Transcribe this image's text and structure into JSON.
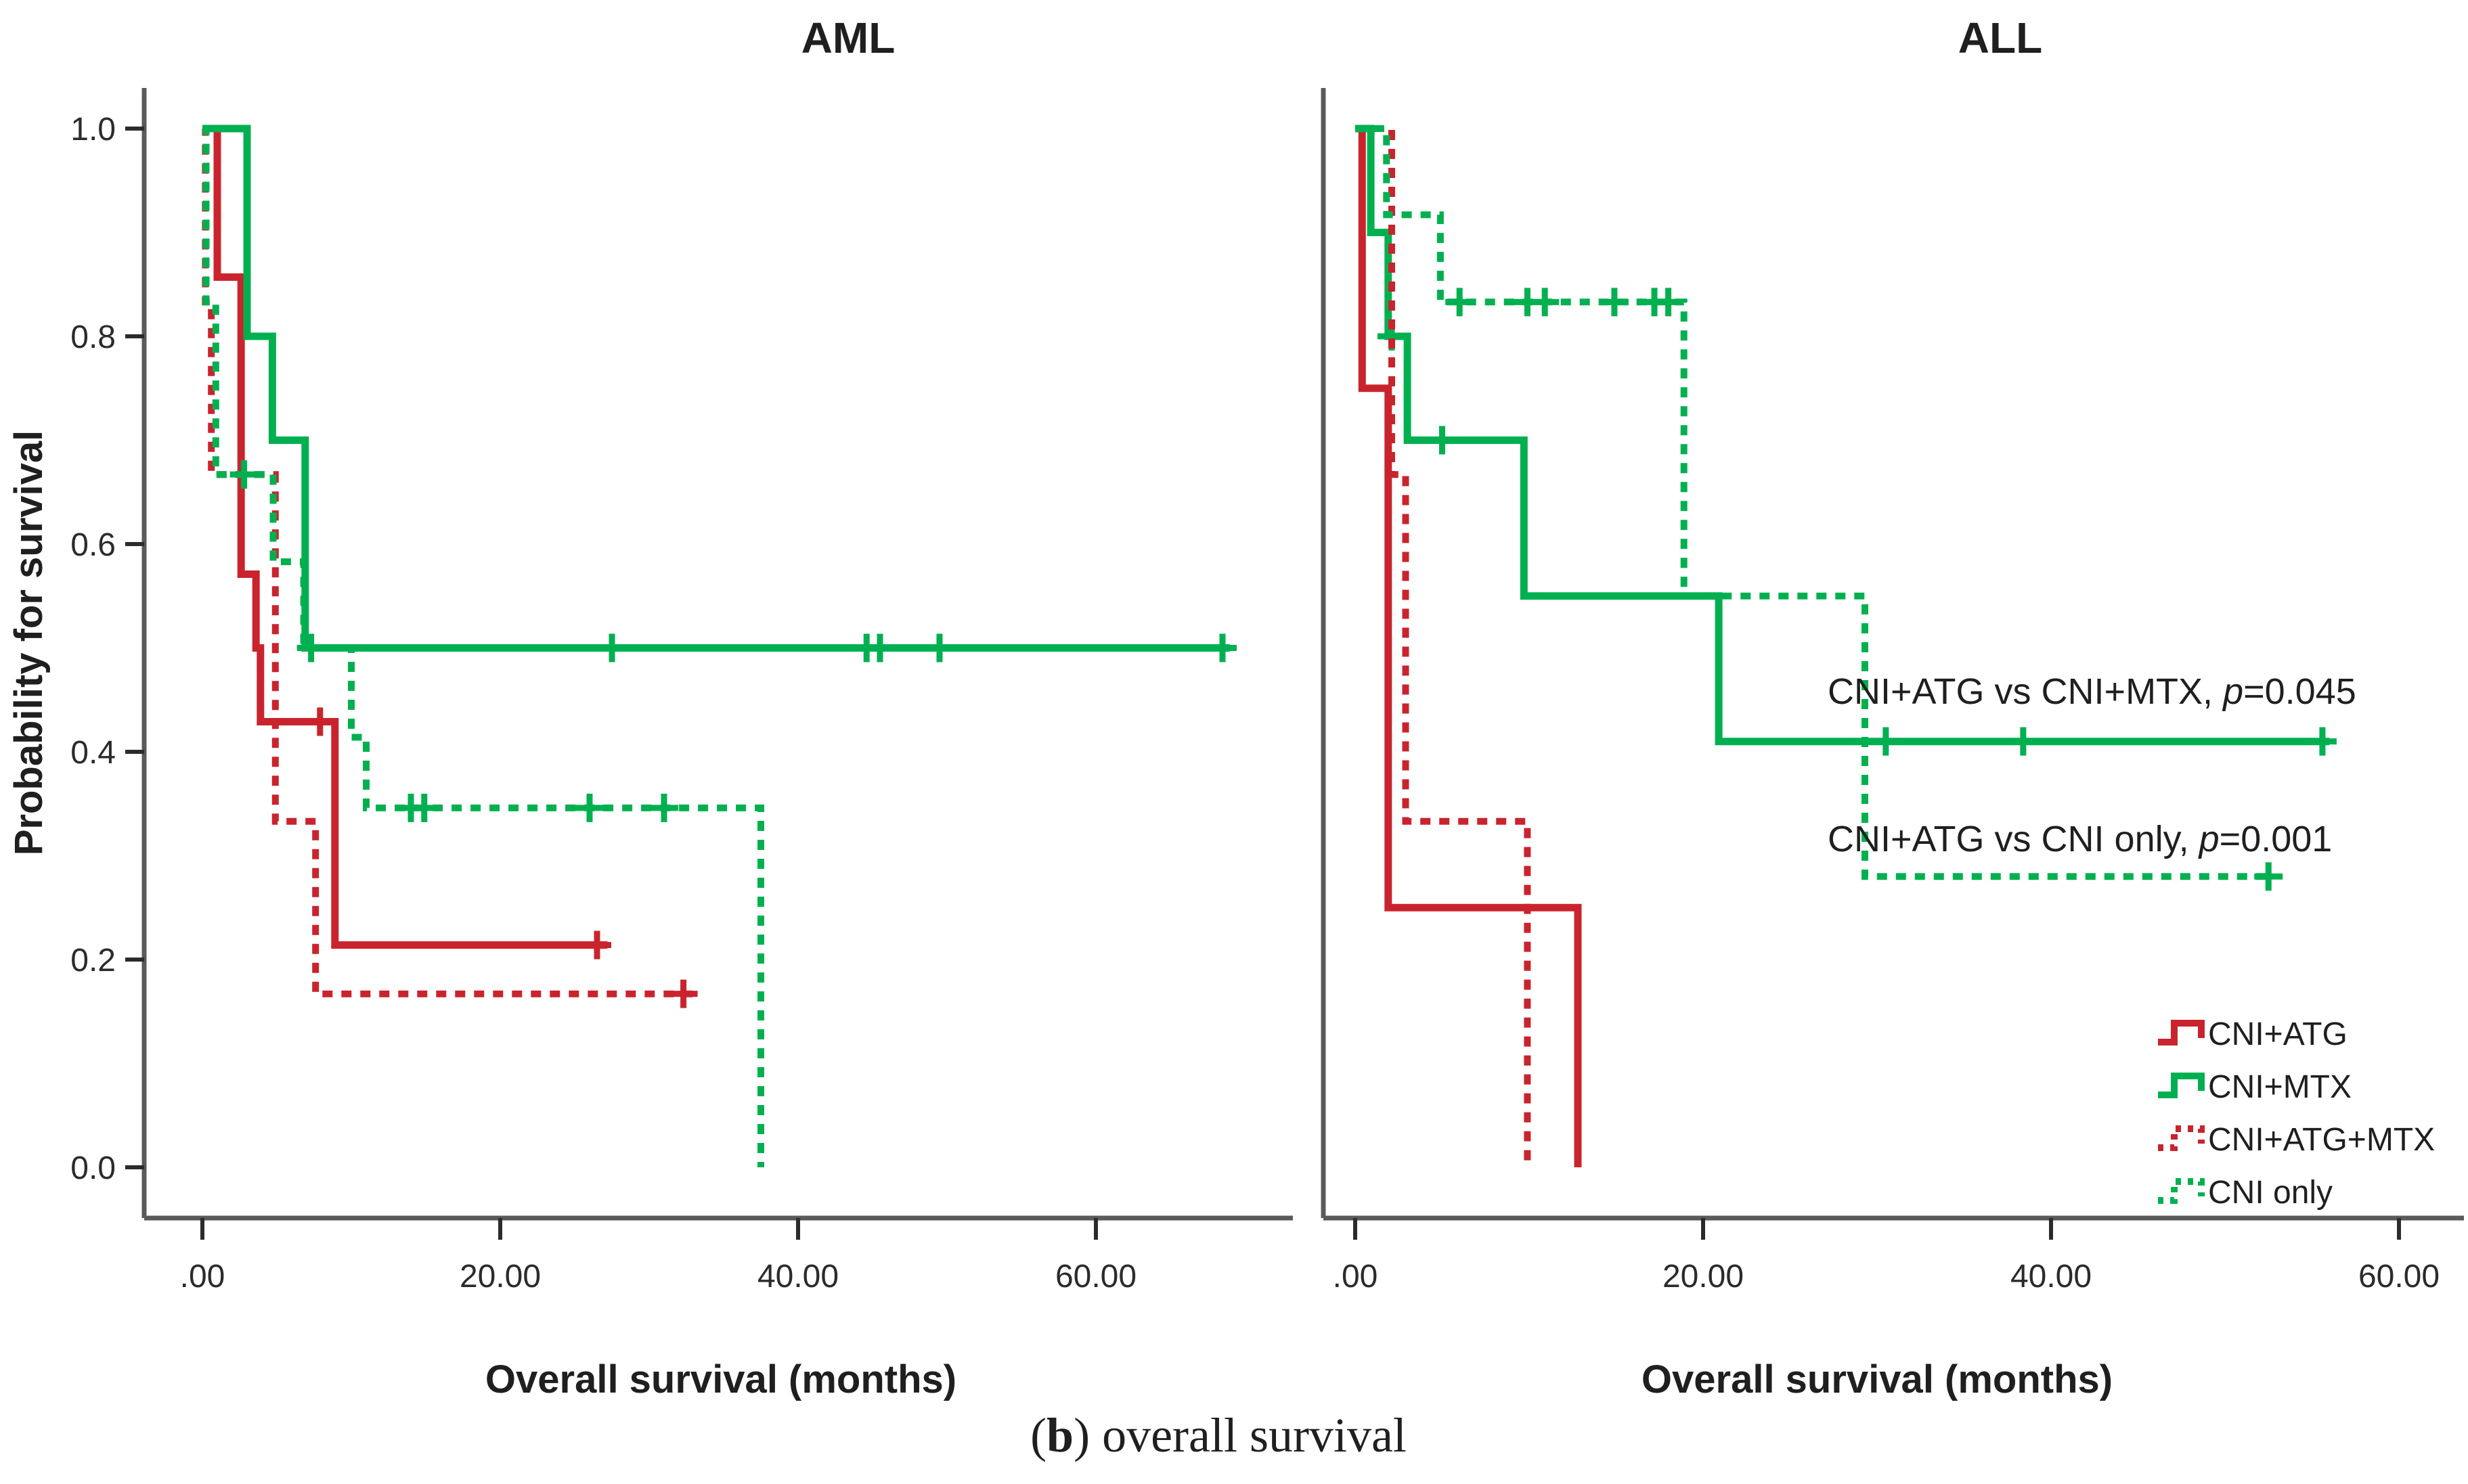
{
  "caption": {
    "open": "(",
    "bold": "b",
    "rest": ") overall survival"
  },
  "colors": {
    "red": "#c9242d",
    "green": "#00b050",
    "axis": "#5a5a5a",
    "text": "#1f1f1f"
  },
  "legend": {
    "position": "bottom-right",
    "items": [
      {
        "label": "CNI+ATG",
        "color": "red",
        "dash": false
      },
      {
        "label": "CNI+MTX",
        "color": "green",
        "dash": false
      },
      {
        "label": "CNI+ATG+MTX",
        "color": "red",
        "dash": true
      },
      {
        "label": "CNI only",
        "color": "green",
        "dash": true
      }
    ]
  },
  "chart_data": [
    {
      "type": "line",
      "subtype": "kaplan-meier-step",
      "title": "AML",
      "xlabel": "Overall survival (months)",
      "ylabel": "Probability for survival",
      "xlim": [
        0,
        74
      ],
      "ylim": [
        0,
        1.0
      ],
      "grid": false,
      "x_ticks": [
        {
          "label": ".00",
          "value": 0
        },
        {
          "label": "20.00",
          "value": 20
        },
        {
          "label": "40.00",
          "value": 40
        },
        {
          "label": "60.00",
          "value": 60
        }
      ],
      "y_ticks": [
        {
          "label": "1.0",
          "value": 1.0
        },
        {
          "label": "0.8",
          "value": 0.8
        },
        {
          "label": "0.6",
          "value": 0.6
        },
        {
          "label": "0.4",
          "value": 0.4
        },
        {
          "label": "0.2",
          "value": 0.2
        },
        {
          "label": "0.0",
          "value": 0.0
        }
      ],
      "series": [
        {
          "name": "CNI+ATG",
          "color": "red",
          "dash": false,
          "points": [
            [
              0,
              1
            ],
            [
              1,
              1
            ],
            [
              1,
              0.857
            ],
            [
              2.6,
              0.857
            ],
            [
              2.6,
              0.571
            ],
            [
              3.6,
              0.571
            ],
            [
              3.6,
              0.5
            ],
            [
              3.9,
              0.5
            ],
            [
              3.9,
              0.429
            ],
            [
              8.9,
              0.429
            ],
            [
              8.9,
              0.214
            ],
            [
              27.2,
              0.214
            ]
          ],
          "censors": [
            [
              7.9,
              0.429
            ],
            [
              26.5,
              0.214
            ]
          ]
        },
        {
          "name": "CNI+MTX",
          "color": "green",
          "dash": false,
          "points": [
            [
              0,
              1
            ],
            [
              3,
              1
            ],
            [
              3,
              0.8
            ],
            [
              4.7,
              0.8
            ],
            [
              4.7,
              0.7
            ],
            [
              6.9,
              0.7
            ],
            [
              6.9,
              0.5
            ],
            [
              69,
              0.5
            ]
          ],
          "censors": [
            [
              27.5,
              0.5
            ],
            [
              44.6,
              0.5
            ],
            [
              45.5,
              0.5
            ],
            [
              49.5,
              0.5
            ],
            [
              68.5,
              0.5
            ]
          ]
        },
        {
          "name": "CNI+ATG+MTX",
          "color": "red",
          "dash": true,
          "points": [
            [
              0,
              1
            ],
            [
              0.2,
              1
            ],
            [
              0.2,
              0.833
            ],
            [
              0.6,
              0.833
            ],
            [
              0.6,
              0.667
            ],
            [
              4.9,
              0.667
            ],
            [
              4.9,
              0.333
            ],
            [
              7.6,
              0.333
            ],
            [
              7.6,
              0.167
            ],
            [
              33,
              0.167
            ]
          ],
          "censors": [
            [
              32.3,
              0.167
            ]
          ]
        },
        {
          "name": "CNI only",
          "color": "green",
          "dash": true,
          "points": [
            [
              0,
              1
            ],
            [
              0.25,
              1
            ],
            [
              0.25,
              0.833
            ],
            [
              0.9,
              0.833
            ],
            [
              0.9,
              0.667
            ],
            [
              4.75,
              0.667
            ],
            [
              4.75,
              0.583
            ],
            [
              6.8,
              0.583
            ],
            [
              6.8,
              0.5
            ],
            [
              10,
              0.5
            ],
            [
              10,
              0.414
            ],
            [
              11,
              0.414
            ],
            [
              11,
              0.346
            ],
            [
              37.5,
              0.346
            ],
            [
              37.5,
              0
            ]
          ],
          "censors": [
            [
              2.8,
              0.667
            ],
            [
              7.3,
              0.5
            ],
            [
              14,
              0.346
            ],
            [
              14.9,
              0.346
            ],
            [
              26,
              0.346
            ],
            [
              31,
              0.346
            ]
          ]
        }
      ]
    },
    {
      "type": "line",
      "subtype": "kaplan-meier-step",
      "title": "ALL",
      "xlabel": "Overall survival (months)",
      "ylabel": "Probability for survival",
      "xlim": [
        0,
        64
      ],
      "ylim": [
        0,
        1.0
      ],
      "grid": false,
      "x_ticks": [
        {
          "label": ".00",
          "value": 0
        },
        {
          "label": "20.00",
          "value": 20
        },
        {
          "label": "40.00",
          "value": 40
        },
        {
          "label": "60.00",
          "value": 60
        }
      ],
      "y_ticks": [],
      "series": [
        {
          "name": "CNI+ATG",
          "color": "red",
          "dash": false,
          "points": [
            [
              0,
              1
            ],
            [
              0.4,
              1
            ],
            [
              0.4,
              0.75
            ],
            [
              1.9,
              0.75
            ],
            [
              1.9,
              0.25
            ],
            [
              12.8,
              0.25
            ],
            [
              12.8,
              0
            ]
          ],
          "censors": []
        },
        {
          "name": "CNI+MTX",
          "color": "green",
          "dash": false,
          "points": [
            [
              0,
              1
            ],
            [
              0.9,
              1
            ],
            [
              0.9,
              0.9
            ],
            [
              1.9,
              0.9
            ],
            [
              1.9,
              0.8
            ],
            [
              3,
              0.8
            ],
            [
              3,
              0.7
            ],
            [
              9.7,
              0.7
            ],
            [
              9.7,
              0.55
            ],
            [
              20.9,
              0.55
            ],
            [
              20.9,
              0.41
            ],
            [
              56,
              0.41
            ]
          ],
          "censors": [
            [
              2.1,
              0.8
            ],
            [
              5,
              0.7
            ],
            [
              30.5,
              0.41
            ],
            [
              38.4,
              0.41
            ],
            [
              55.6,
              0.41
            ]
          ]
        },
        {
          "name": "CNI+ATG+MTX",
          "color": "red",
          "dash": true,
          "points": [
            [
              0,
              1
            ],
            [
              2.1,
              1
            ],
            [
              2.1,
              0.667
            ],
            [
              2.9,
              0.667
            ],
            [
              2.9,
              0.333
            ],
            [
              9.9,
              0.333
            ],
            [
              9.9,
              0
            ]
          ],
          "censors": []
        },
        {
          "name": "CNI only",
          "color": "green",
          "dash": true,
          "points": [
            [
              0,
              1
            ],
            [
              1.8,
              1
            ],
            [
              1.8,
              0.917
            ],
            [
              4.9,
              0.917
            ],
            [
              4.9,
              0.833
            ],
            [
              18.9,
              0.833
            ],
            [
              18.9,
              0.55
            ],
            [
              29.3,
              0.55
            ],
            [
              29.3,
              0.28
            ],
            [
              52.5,
              0.28
            ]
          ],
          "censors": [
            [
              6,
              0.833
            ],
            [
              9.9,
              0.833
            ],
            [
              10.9,
              0.833
            ],
            [
              14.9,
              0.833
            ],
            [
              17.2,
              0.833
            ],
            [
              18,
              0.833
            ],
            [
              52.5,
              0.28
            ]
          ]
        }
      ],
      "annotations": [
        {
          "before": "CNI+ATG vs CNI+MTX, ",
          "italic": "p",
          "after": "=0.045"
        },
        {
          "before": "CNI+ATG vs CNI only, ",
          "italic": "p",
          "after": "=0.001"
        }
      ]
    }
  ]
}
